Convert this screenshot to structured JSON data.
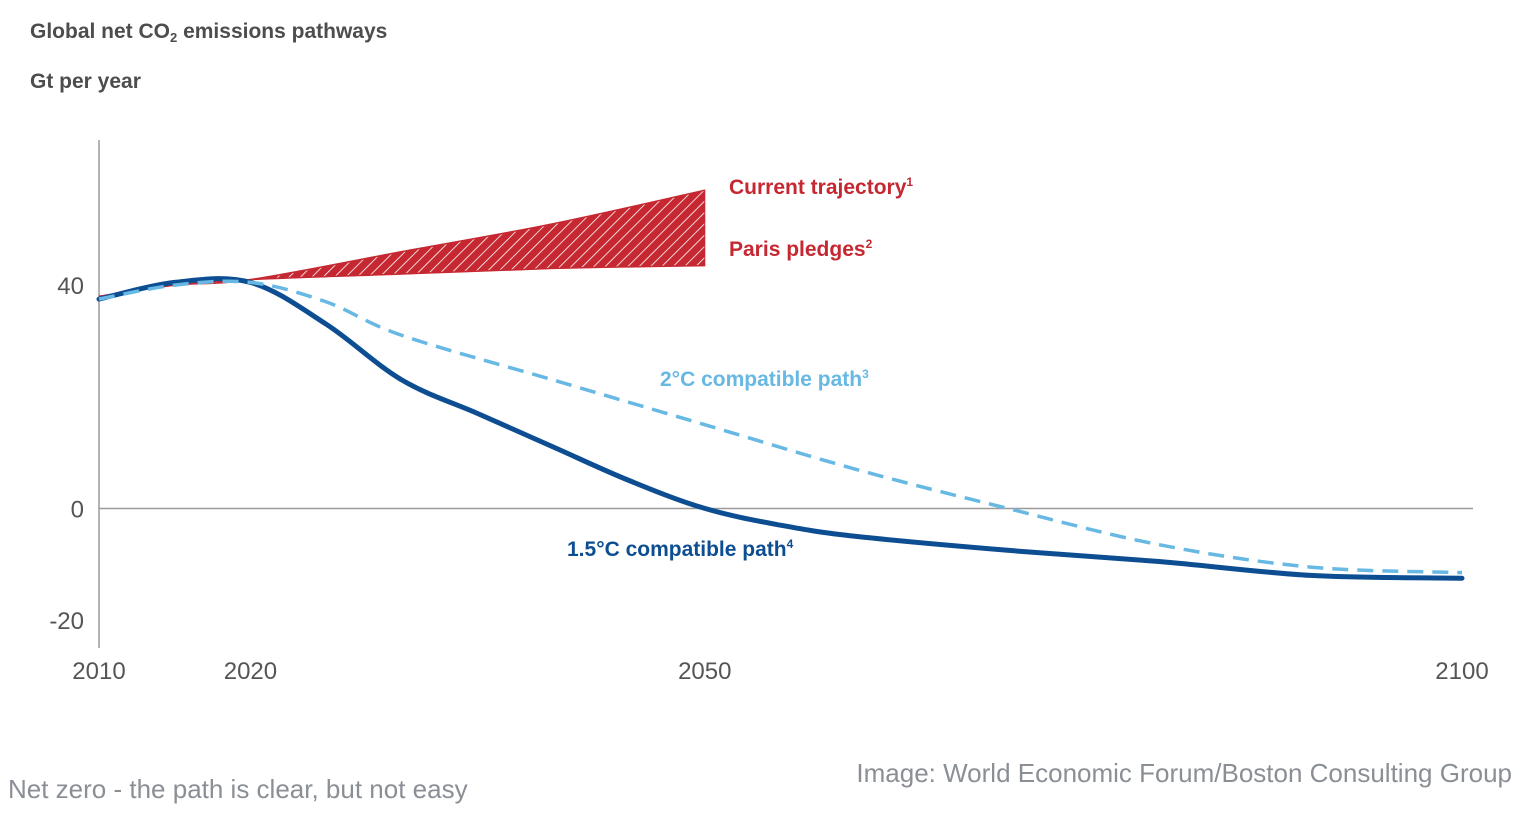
{
  "header": {
    "title_prefix": "Global net CO",
    "title_sub": "2",
    "title_suffix": " emissions pathways",
    "subtitle": "Gt per year"
  },
  "chart_data": {
    "type": "line",
    "title": "Global net CO2 emissions pathways",
    "ylabel": "Gt per year",
    "xlim": [
      2010,
      2100
    ],
    "ylim": [
      -25,
      66
    ],
    "x_ticks": [
      "2010",
      "2020",
      "2050",
      "2100"
    ],
    "y_ticks": [
      "40",
      "0",
      "-20"
    ],
    "grid": false,
    "series": [
      {
        "name": "Current trajectory",
        "footnote": "1",
        "color": "#c62832",
        "style": "hatched-band-upper",
        "x": [
          2010,
          2015,
          2020,
          2030,
          2040,
          2050
        ],
        "y": [
          38,
          40,
          41,
          46,
          51,
          57
        ]
      },
      {
        "name": "Paris pledges",
        "footnote": "2",
        "color": "#c62832",
        "style": "hatched-band-lower",
        "x": [
          2010,
          2015,
          2020,
          2030,
          2040,
          2050
        ],
        "y": [
          38,
          40,
          41,
          42,
          43,
          43.5
        ]
      },
      {
        "name": "2°C compatible path",
        "footnote": "3",
        "color": "#67b8e3",
        "style": "dashed",
        "x": [
          2010,
          2015,
          2020,
          2025,
          2030,
          2040,
          2050,
          2060,
          2070,
          2080,
          2090,
          2100
        ],
        "y": [
          37.5,
          40,
          40.5,
          37,
          31,
          23,
          15,
          7,
          0,
          -6.5,
          -10.5,
          -11.5
        ]
      },
      {
        "name": "1.5°C compatible path",
        "footnote": "4",
        "color": "#0d4e92",
        "style": "solid",
        "x": [
          2010,
          2015,
          2020,
          2025,
          2030,
          2035,
          2040,
          2045,
          2050,
          2055,
          2060,
          2070,
          2080,
          2090,
          2100
        ],
        "y": [
          37.5,
          40.5,
          40.5,
          33,
          23,
          17,
          11,
          5,
          0,
          -3,
          -5,
          -7.5,
          -9.5,
          -12,
          -12.5
        ]
      }
    ]
  },
  "footer": {
    "caption": "Net zero - the path is clear, but not easy",
    "credit": "Image: World Economic Forum/Boston Consulting Group"
  }
}
